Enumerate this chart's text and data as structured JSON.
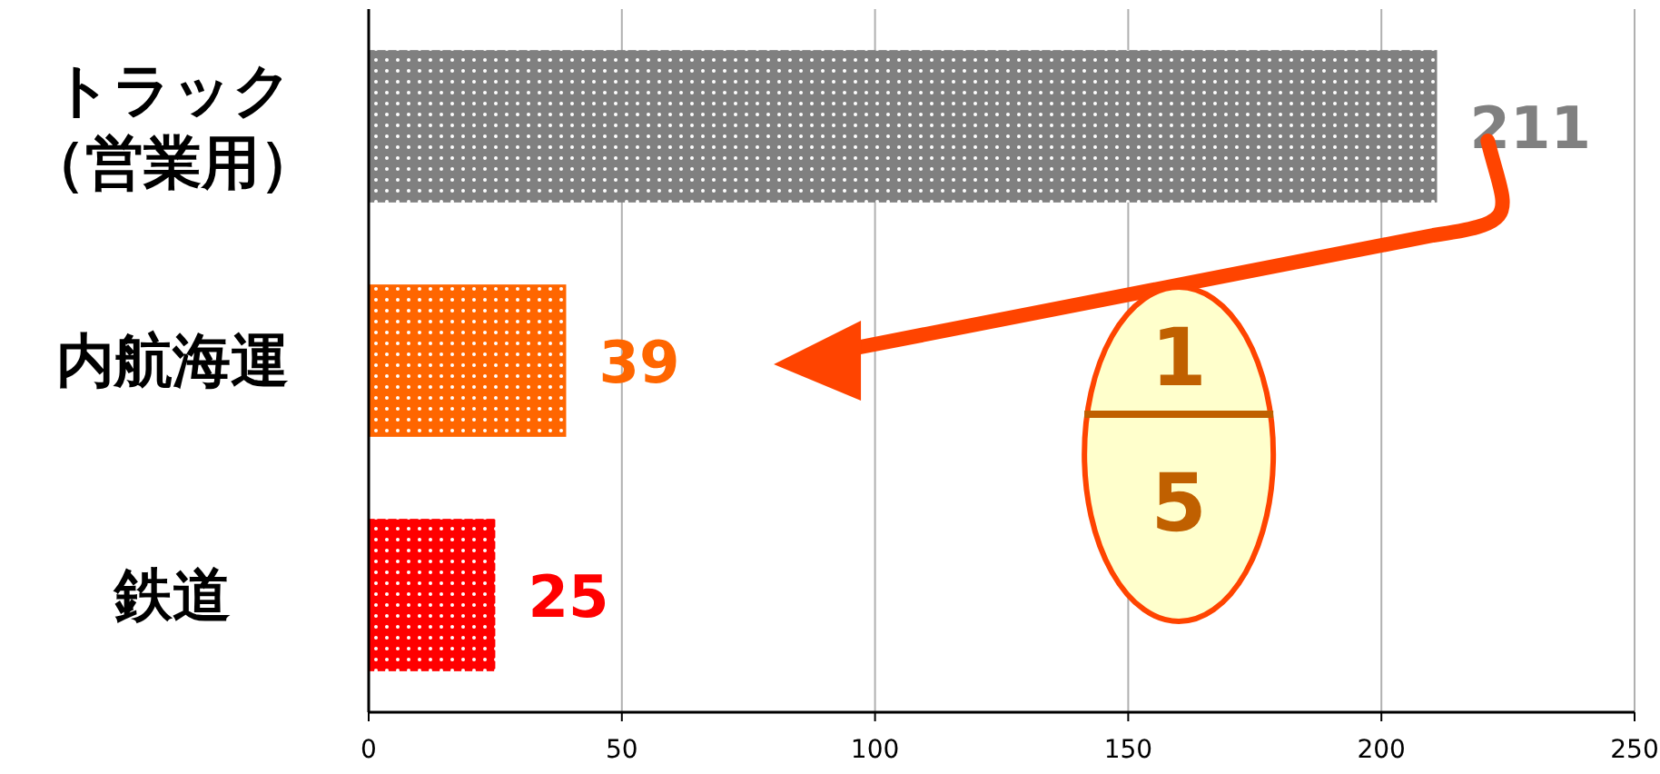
{
  "chart_data": {
    "type": "bar",
    "orientation": "horizontal",
    "categories": [
      "トラック（営業用）",
      "内航海運",
      "鉄道"
    ],
    "values": [
      211,
      39,
      25
    ],
    "colors": [
      "#808080",
      "#ff6600",
      "#ff0000"
    ],
    "value_labels": [
      "211",
      "39",
      "25"
    ],
    "xlim": [
      0,
      250
    ],
    "xticks": [
      0,
      50,
      100,
      150,
      200,
      250
    ],
    "grid": "x",
    "annotations": [
      "1",
      "5"
    ]
  }
}
